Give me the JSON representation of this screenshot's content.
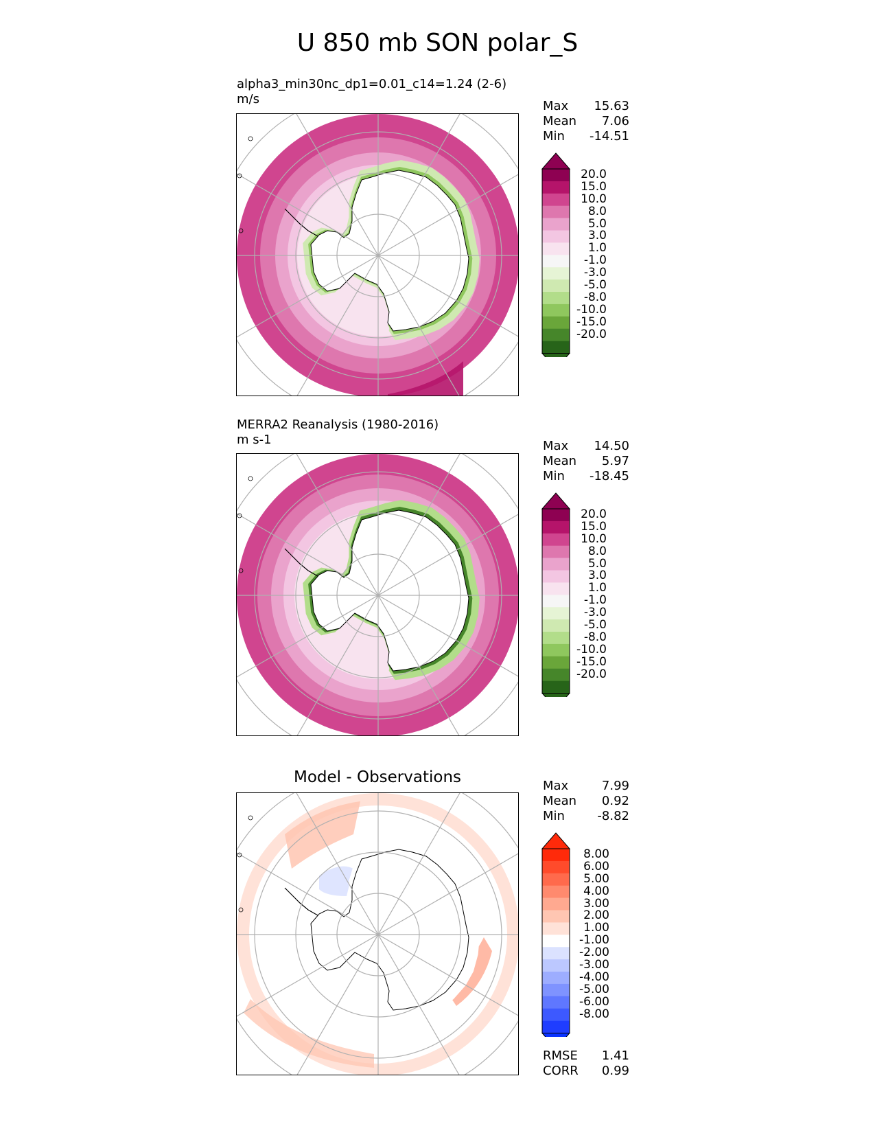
{
  "title": "U 850 mb SON polar_S",
  "panels": [
    {
      "id": "model",
      "label_line1": "alpha3_min30nc_dp1=0.01_c14=1.24 (2-6)",
      "label_line2": "m/s",
      "center_title": "",
      "stats": [
        {
          "name": "Max",
          "value": "15.63"
        },
        {
          "name": "Mean",
          "value": "7.06"
        },
        {
          "name": "Min",
          "value": "-14.51"
        }
      ],
      "colorbar": {
        "labels": [
          "20.0",
          "15.0",
          "10.0",
          "8.0",
          "5.0",
          "3.0",
          "1.0",
          "-1.0",
          "-3.0",
          "-5.0",
          "-8.0",
          "-10.0",
          "-15.0",
          "-20.0"
        ],
        "colors": [
          "#8e0152",
          "#b5146a",
          "#d0458f",
          "#de77ae",
          "#eaa3cc",
          "#f3c6e2",
          "#f8e3ef",
          "#f6f6f6",
          "#e6f4d5",
          "#cfe9b1",
          "#b2dd8a",
          "#8fc75e",
          "#6aa63a",
          "#46862a",
          "#276419"
        ],
        "top_color": "#8e0152",
        "bottom_color": "#276419"
      },
      "extra_stats": []
    },
    {
      "id": "obs",
      "label_line1": "MERRA2 Reanalysis (1980-2016)",
      "label_line2": "m s-1",
      "center_title": "",
      "stats": [
        {
          "name": "Max",
          "value": "14.50"
        },
        {
          "name": "Mean",
          "value": "5.97"
        },
        {
          "name": "Min",
          "value": "-18.45"
        }
      ],
      "colorbar": {
        "labels": [
          "20.0",
          "15.0",
          "10.0",
          "8.0",
          "5.0",
          "3.0",
          "1.0",
          "-1.0",
          "-3.0",
          "-5.0",
          "-8.0",
          "-10.0",
          "-15.0",
          "-20.0"
        ],
        "colors": [
          "#8e0152",
          "#b5146a",
          "#d0458f",
          "#de77ae",
          "#eaa3cc",
          "#f3c6e2",
          "#f8e3ef",
          "#f6f6f6",
          "#e6f4d5",
          "#cfe9b1",
          "#b2dd8a",
          "#8fc75e",
          "#6aa63a",
          "#46862a",
          "#276419"
        ],
        "top_color": "#8e0152",
        "bottom_color": "#276419"
      },
      "extra_stats": []
    },
    {
      "id": "diff",
      "label_line1": "",
      "label_line2": "",
      "center_title": "Model - Observations",
      "stats": [
        {
          "name": "Max",
          "value": "7.99"
        },
        {
          "name": "Mean",
          "value": "0.92"
        },
        {
          "name": "Min",
          "value": "-8.82"
        }
      ],
      "colorbar": {
        "labels": [
          "8.00",
          "6.00",
          "5.00",
          "4.00",
          "3.00",
          "2.00",
          "1.00",
          "-1.00",
          "-2.00",
          "-3.00",
          "-4.00",
          "-5.00",
          "-6.00",
          "-8.00"
        ],
        "colors": [
          "#ff2a0a",
          "#ff4b2b",
          "#ff6a4c",
          "#ff8a6e",
          "#ffa990",
          "#ffc6b2",
          "#ffe2d8",
          "#ffffff",
          "#dbe2ff",
          "#bcc8ff",
          "#9dadff",
          "#7f93ff",
          "#5f77ff",
          "#3d59ff",
          "#1f3dff"
        ],
        "top_color": "#ff2a0a",
        "bottom_color": "#0a33ff"
      },
      "extra_stats": [
        {
          "name": "RMSE",
          "value": "1.41"
        },
        {
          "name": "CORR",
          "value": "0.99"
        }
      ]
    }
  ]
}
